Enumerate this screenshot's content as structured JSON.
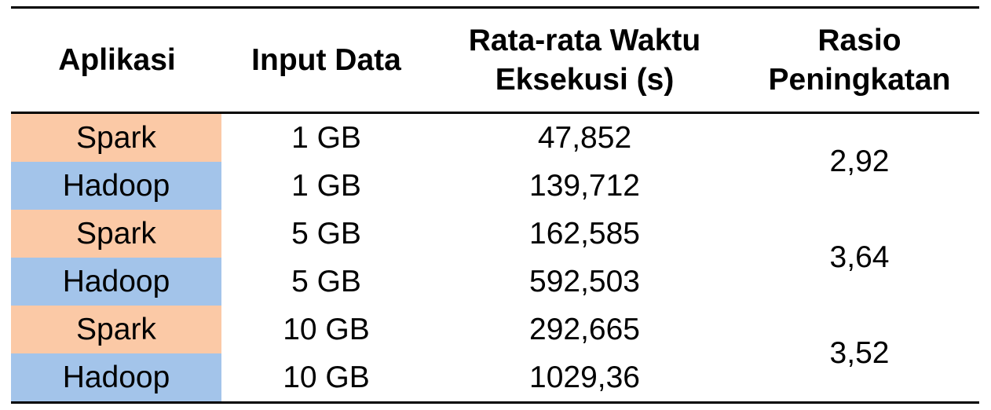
{
  "colors": {
    "spark_bg": "#fbc9a6",
    "hadoop_bg": "#a3c4ea",
    "rule": "#000000"
  },
  "headers": {
    "aplikasi": "Aplikasi",
    "input_data": "Input Data",
    "waktu_line1": "Rata-rata Waktu",
    "waktu_line2": "Eksekusi (s)",
    "rasio_line1": "Rasio",
    "rasio_line2": "Peningkatan"
  },
  "rows": [
    {
      "aplikasi": "Spark",
      "input": "1 GB",
      "waktu": "47,852"
    },
    {
      "aplikasi": "Hadoop",
      "input": "1 GB",
      "waktu": "139,712"
    },
    {
      "aplikasi": "Spark",
      "input": "5 GB",
      "waktu": "162,585"
    },
    {
      "aplikasi": "Hadoop",
      "input": "5 GB",
      "waktu": "592,503"
    },
    {
      "aplikasi": "Spark",
      "input": "10 GB",
      "waktu": "292,665"
    },
    {
      "aplikasi": "Hadoop",
      "input": "10 GB",
      "waktu": "1029,36"
    }
  ],
  "ratios": [
    "2,92",
    "3,64",
    "3,52"
  ]
}
